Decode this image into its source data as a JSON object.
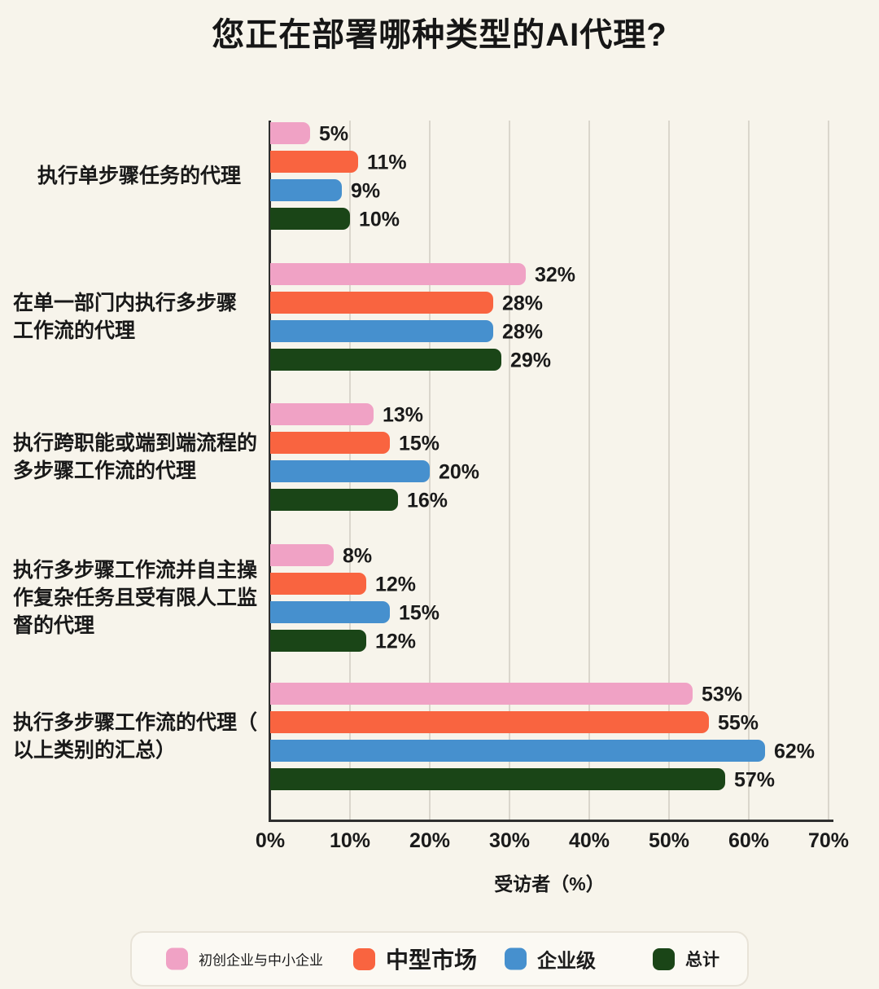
{
  "chart_data": {
    "type": "bar",
    "orientation": "horizontal",
    "title": "您正在部署哪种类型的AI代理?",
    "xlabel": "受访者（%）",
    "xlim": [
      0,
      70
    ],
    "x_tick_labels": [
      "0%",
      "10%",
      "20%",
      "30%",
      "40%",
      "50%",
      "60%",
      "70%"
    ],
    "grid": true,
    "legend_position": "bottom",
    "value_suffix": "%",
    "categories": [
      {
        "label": "执行单步骤任务的代理",
        "lines": [
          "执行单步骤任务的代理"
        ]
      },
      {
        "label": "在单一部门内执行多步骤工作流的代理",
        "lines": [
          "在单一部门内执行多步骤",
          "工作流的代理"
        ]
      },
      {
        "label": "执行跨职能或端到端流程的多步骤工作流的代理",
        "lines": [
          "执行跨职能或端到端流程的",
          "多步骤工作流的代理"
        ]
      },
      {
        "label": "执行多步骤工作流并自主操作复杂任务且受有限人工监督的代理",
        "lines": [
          "执行多步骤工作流并自主操",
          "作复杂任务且受有限人工监",
          "督的代理"
        ]
      },
      {
        "label": "执行多步骤工作流的代理（以上类别的汇总）",
        "lines": [
          "执行多步骤工作流的代理（",
          "以上类别的汇总）"
        ]
      }
    ],
    "series": [
      {
        "name": "初创企业与中小企业",
        "color": "#F0A2C5",
        "values": [
          5,
          32,
          13,
          8,
          53
        ]
      },
      {
        "name": "中型市场",
        "color": "#F96440",
        "values": [
          11,
          28,
          15,
          12,
          55
        ]
      },
      {
        "name": "企业级",
        "color": "#4690CE",
        "values": [
          9,
          28,
          20,
          15,
          62
        ]
      },
      {
        "name": "总计",
        "color": "#1A4517",
        "values": [
          10,
          29,
          16,
          12,
          57
        ]
      }
    ]
  },
  "colors": {
    "background": "#F7F4EB",
    "gridline": "#DAD6CC",
    "axis": "#2F2F2F",
    "text": "#1A1A1A",
    "legend_background": "#FBF9F3",
    "legend_border": "#E8E3D8"
  }
}
